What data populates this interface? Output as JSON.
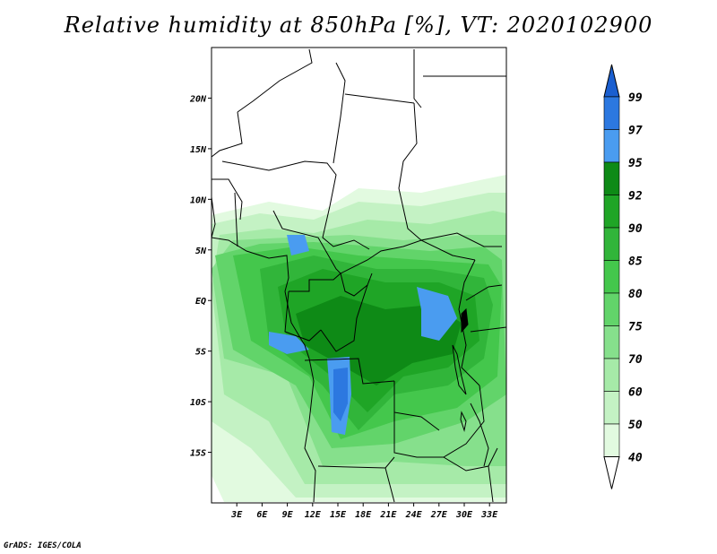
{
  "title": "Relative humidity at 850hPa [%], VT: 2020102900",
  "credit": "GrADS: IGES/COLA",
  "map": {
    "lon_range": [
      0,
      35
    ],
    "lat_range": [
      -20,
      25
    ],
    "x_ticks": [
      {
        "lon": 3,
        "label": "3E"
      },
      {
        "lon": 6,
        "label": "6E"
      },
      {
        "lon": 9,
        "label": "9E"
      },
      {
        "lon": 12,
        "label": "12E"
      },
      {
        "lon": 15,
        "label": "15E"
      },
      {
        "lon": 18,
        "label": "18E"
      },
      {
        "lon": 21,
        "label": "21E"
      },
      {
        "lon": 24,
        "label": "24E"
      },
      {
        "lon": 27,
        "label": "27E"
      },
      {
        "lon": 30,
        "label": "30E"
      },
      {
        "lon": 33,
        "label": "33E"
      }
    ],
    "y_ticks": [
      {
        "lat": 20,
        "label": "20N"
      },
      {
        "lat": 15,
        "label": "15N"
      },
      {
        "lat": 10,
        "label": "10N"
      },
      {
        "lat": 5,
        "label": "5N"
      },
      {
        "lat": 0,
        "label": "EQ"
      },
      {
        "lat": -5,
        "label": "5S"
      },
      {
        "lat": -10,
        "label": "10S"
      },
      {
        "lat": -15,
        "label": "15S"
      }
    ]
  },
  "colorbar": {
    "levels": [
      "99",
      "97",
      "95",
      "92",
      "90",
      "85",
      "80",
      "75",
      "70",
      "60",
      "50",
      "40"
    ],
    "colors": [
      "#1a5fd0",
      "#2c78e0",
      "#4a9cf0",
      "#0e8a16",
      "#1fa526",
      "#31b53a",
      "#44c74c",
      "#62d46a",
      "#86e08c",
      "#a6eaa8",
      "#c4f2c4",
      "#e2fae0",
      "#ffffff"
    ]
  },
  "fields": {
    "colors": [
      "#e2fae0",
      "#c4f2c4",
      "#a6eaa8",
      "#86e08c",
      "#62d46a",
      "#44c74c",
      "#31b53a",
      "#1fa526",
      "#0e8a16",
      "#4a9cf0",
      "#2c78e0"
    ]
  }
}
